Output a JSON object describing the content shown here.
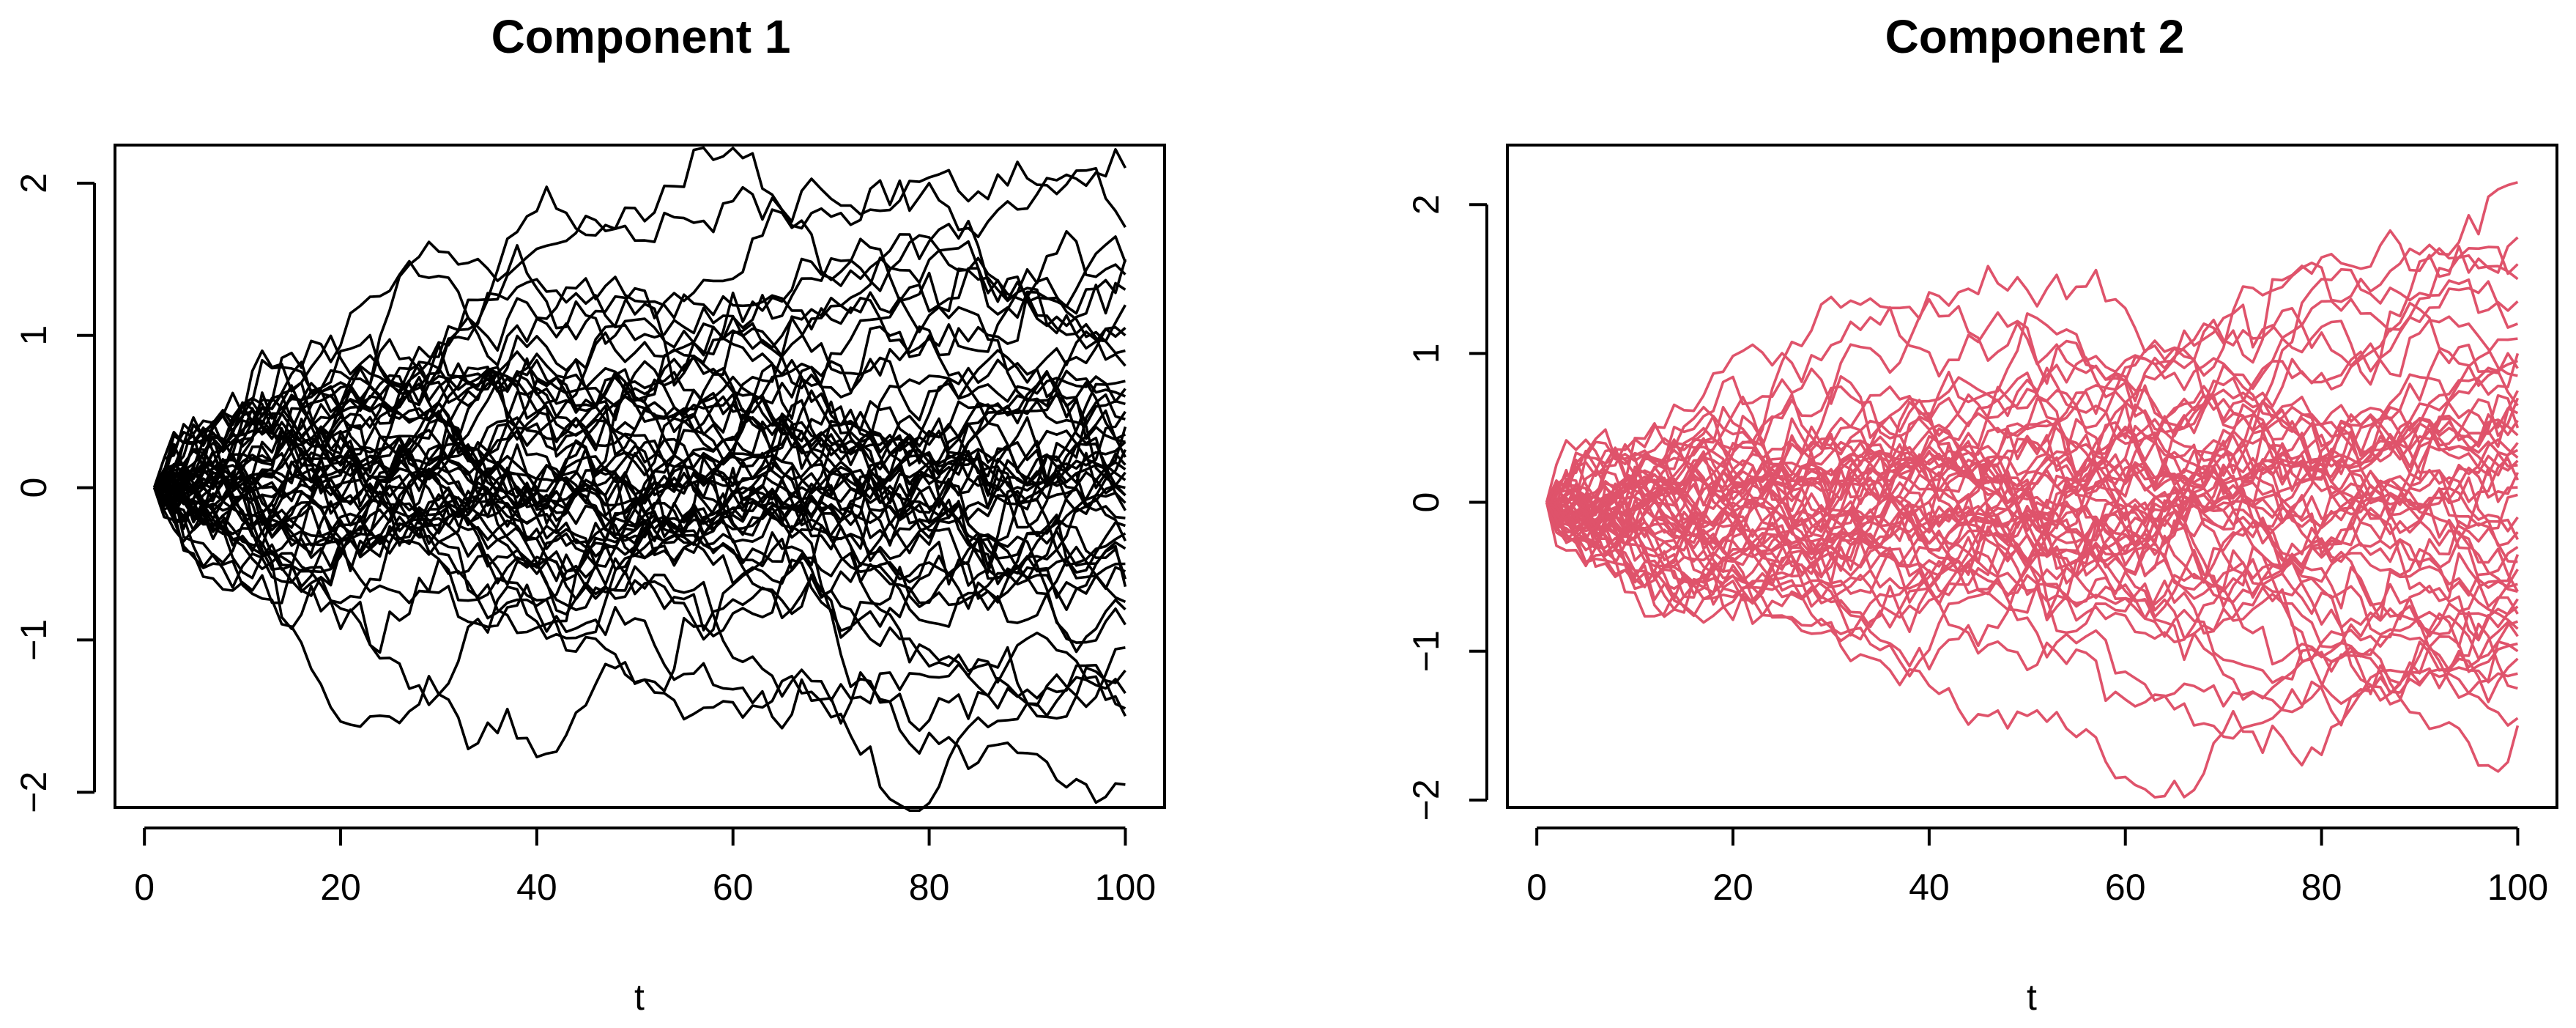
{
  "chart_data": [
    {
      "type": "line",
      "title": "Component  1",
      "xlabel": "t",
      "ylabel": "",
      "xlim": [
        -3,
        104
      ],
      "ylim": [
        -2.1,
        2.25
      ],
      "xticks": [
        "0",
        "20",
        "40",
        "60",
        "80",
        "100"
      ],
      "yticks": [
        "−2",
        "−1",
        "0",
        "1",
        "2"
      ],
      "color": "#000000",
      "n_series": 50,
      "n_points": 100,
      "series_end_values": [
        2.1,
        1.71,
        1.5,
        1.48,
        1.4,
        1.05,
        1.0,
        0.7,
        0.65,
        0.6,
        0.5,
        0.4,
        0.35,
        0.3,
        0.2,
        0.12,
        0.1,
        0.05,
        0.0,
        -0.05,
        -0.1,
        -0.15,
        -0.2,
        -0.25,
        -0.55,
        -0.6,
        -0.75,
        -0.8,
        -1.05,
        -1.35,
        -1.45,
        -1.5,
        -1.95,
        0.9,
        -0.4,
        0.25,
        -0.3,
        0.55,
        -0.9,
        1.2,
        -0.05,
        0.45,
        -0.65,
        0.8,
        -1.2,
        0.15,
        -0.35,
        0.3,
        -0.5,
        1.3
      ]
    },
    {
      "type": "line",
      "title": "Component  2",
      "xlabel": "t",
      "ylabel": "",
      "xlim": [
        -3,
        104
      ],
      "ylim": [
        -2.05,
        2.4
      ],
      "xticks": [
        "0",
        "20",
        "40",
        "60",
        "80",
        "100"
      ],
      "yticks": [
        "−2",
        "−1",
        "0",
        "1",
        "2"
      ],
      "color": "#DF536B",
      "n_series": 50,
      "n_points": 100,
      "series_end_values": [
        2.15,
        1.78,
        1.6,
        1.5,
        1.2,
        1.0,
        0.9,
        0.75,
        0.7,
        0.6,
        0.5,
        0.45,
        0.4,
        0.35,
        0.3,
        0.28,
        0.2,
        0.05,
        -0.3,
        -0.35,
        -0.45,
        -0.6,
        -0.65,
        -0.7,
        -0.75,
        -0.8,
        -0.85,
        -0.9,
        -1.05,
        -1.25,
        -1.45,
        -1.5,
        0.55,
        -0.2,
        0.1,
        -1.0,
        0.85,
        -0.55,
        1.35,
        -0.1,
        0.65,
        -1.15,
        0.25,
        -0.4,
        1.1,
        -0.95,
        0.15,
        -0.25,
        0.95,
        -0.6
      ]
    }
  ]
}
